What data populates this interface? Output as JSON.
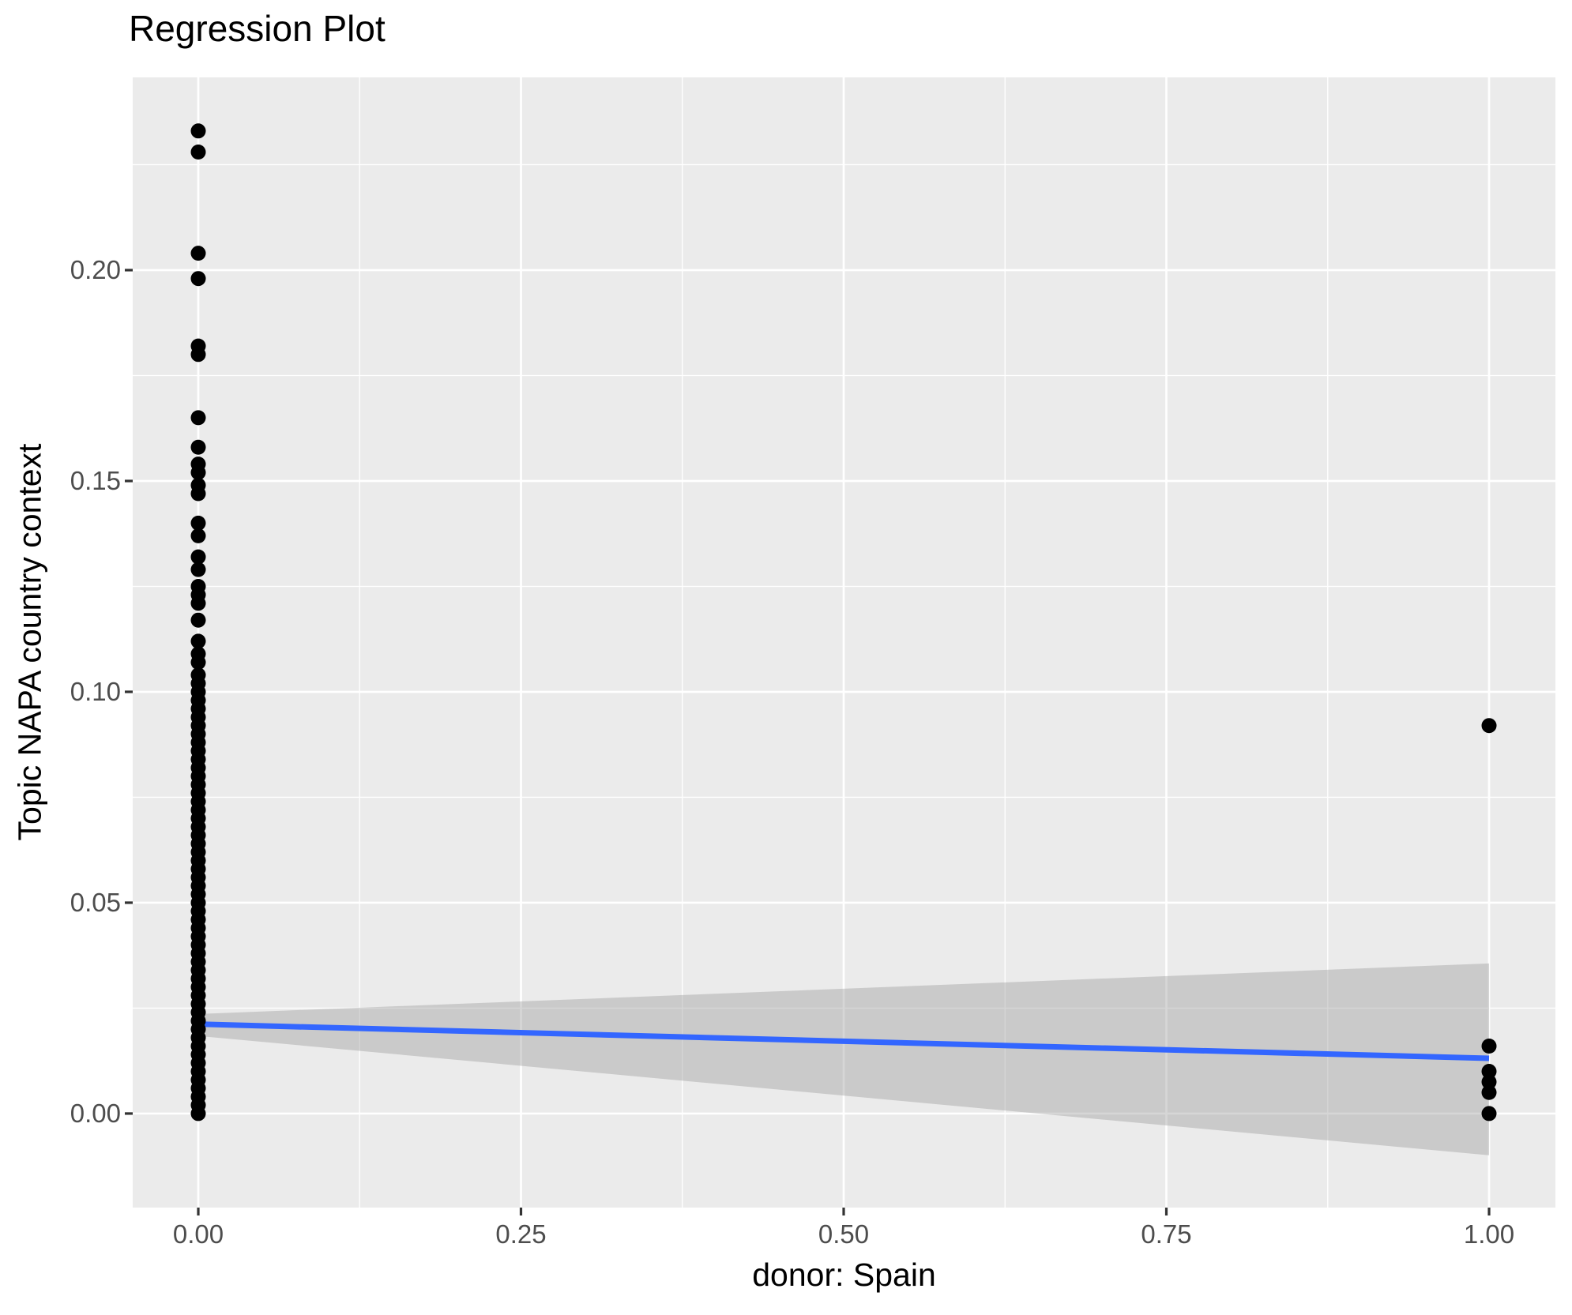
{
  "chart_data": {
    "type": "scatter",
    "title": "Regression Plot",
    "xlabel": "donor: Spain",
    "ylabel": "Topic NAPA country context",
    "axes": {
      "xlim": [
        -0.0508,
        1.0514
      ],
      "ylim": [
        -0.0223,
        0.2457
      ],
      "x_tick_values": [
        0,
        0.25,
        0.5,
        0.75,
        1
      ],
      "x_tick_labels": [
        "0.00",
        "0.25",
        "0.50",
        "0.75",
        "1.00"
      ],
      "y_tick_values": [
        0,
        0.05,
        0.1,
        0.15,
        0.2
      ],
      "y_tick_labels": [
        "0.00",
        "0.05",
        "0.10",
        "0.15",
        "0.20"
      ],
      "x_minor_ticks": [
        0.125,
        0.375,
        0.625,
        0.875
      ],
      "y_minor_ticks": [
        0.025,
        0.075,
        0.125,
        0.175,
        0.225
      ],
      "grid": "on",
      "legend": "none"
    },
    "points_at_x0": [
      0.233,
      0.228,
      0.204,
      0.198,
      0.182,
      0.18,
      0.165,
      0.158,
      0.154,
      0.152,
      0.149,
      0.147,
      0.14,
      0.137,
      0.132,
      0.129,
      0.125,
      0.123,
      0.121,
      0.117,
      0.112,
      0.109,
      0.107,
      0.104,
      0.102,
      0.1,
      0.098,
      0.096,
      0.094,
      0.092,
      0.09,
      0.088,
      0.086,
      0.084,
      0.082,
      0.08,
      0.078,
      0.076,
      0.074,
      0.072,
      0.07,
      0.068,
      0.066,
      0.064,
      0.062,
      0.06,
      0.058,
      0.056,
      0.054,
      0.052,
      0.05,
      0.048,
      0.046,
      0.044,
      0.042,
      0.04,
      0.038,
      0.036,
      0.034,
      0.032,
      0.03,
      0.028,
      0.026,
      0.024,
      0.022,
      0.02,
      0.018,
      0.016,
      0.014,
      0.012,
      0.01,
      0.008,
      0.006,
      0.004,
      0.002,
      0.0
    ],
    "points_at_x1": [
      0.092,
      0.016,
      0.01,
      0.0075,
      0.005,
      0.0
    ],
    "regression_line": {
      "x": [
        0,
        1
      ],
      "y": [
        0.0212,
        0.0131
      ]
    },
    "confidence_band": {
      "x": [
        0,
        1
      ],
      "upper": [
        0.0236,
        0.0356
      ],
      "lower": [
        0.0184,
        -0.0099
      ]
    },
    "colors": {
      "panel_background": "#EBEBEB",
      "gridline": "#FFFFFF",
      "point": "#000000",
      "smooth_line": "#3366FF",
      "ribbon_fill": "#999999",
      "ribbon_opacity": 0.4,
      "tick_text": "#4D4D4D",
      "tick_mark": "#333333",
      "title_text": "#000000"
    }
  }
}
